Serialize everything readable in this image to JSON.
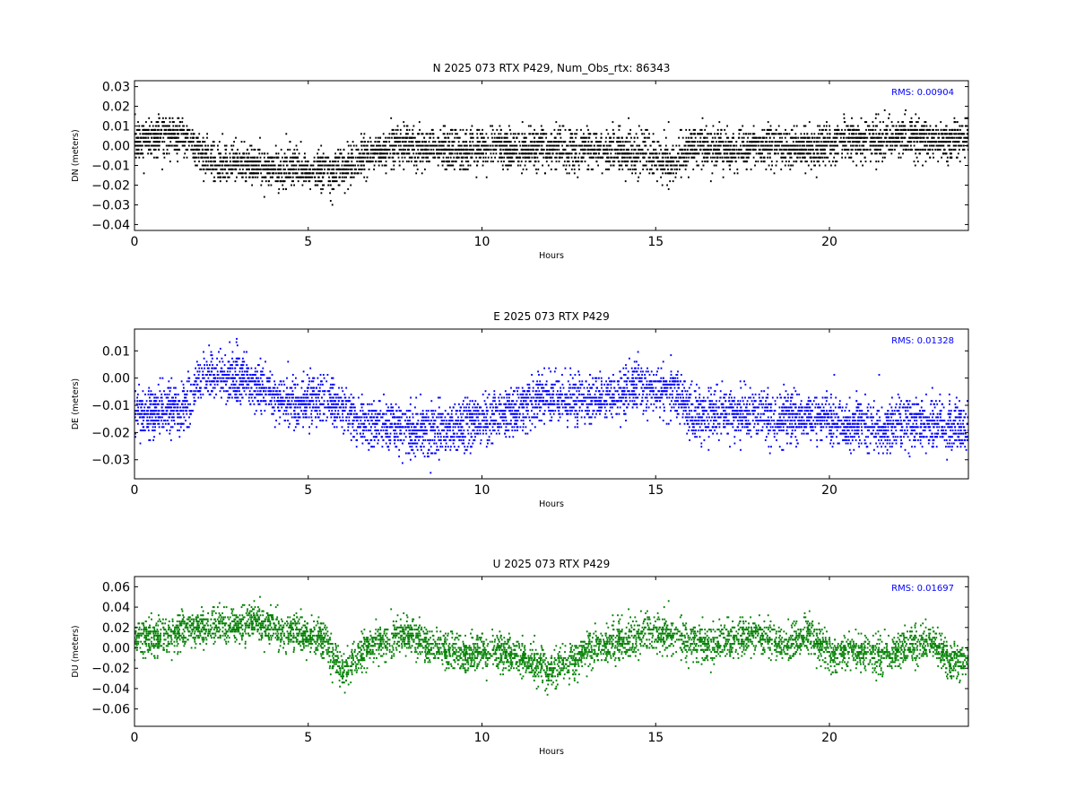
{
  "chart_data": [
    {
      "type": "scatter",
      "title": "N 2025 073 RTX  P429, Num_Obs_rtx: 86343",
      "xlabel": "Hours",
      "ylabel": "DN (meters)",
      "xlim": [
        0,
        24
      ],
      "ylim": [
        -0.043,
        0.033
      ],
      "xticks": [
        0,
        5,
        10,
        15,
        20
      ],
      "yticks": [
        -0.04,
        -0.03,
        -0.02,
        -0.01,
        0.0,
        0.01,
        0.02,
        0.03
      ],
      "ytick_labels": [
        "−0.04",
        "−0.03",
        "−0.02",
        "−0.01",
        "0.00",
        "0.01",
        "0.02",
        "0.03"
      ],
      "color": "#000000",
      "rms_label": "RMS:  0.00904",
      "quantization_step": 0.002,
      "series": [
        {
          "x": [
            0,
            0.5,
            1,
            1.5,
            2,
            2.5,
            3,
            3.5,
            4,
            4.5,
            5,
            5.5,
            6,
            6.5,
            7,
            7.5,
            8,
            8.5,
            9,
            9.5,
            10,
            10.5,
            11,
            11.5,
            12,
            12.5,
            13,
            13.5,
            14,
            14.5,
            15,
            15.5,
            16,
            16.5,
            17,
            17.5,
            18,
            18.5,
            19,
            19.5,
            20,
            20.5,
            21,
            21.5,
            22,
            22.5,
            23,
            23.5,
            24
          ],
          "mean": [
            0.002,
            0.004,
            0.006,
            0.003,
            -0.005,
            -0.01,
            -0.008,
            -0.01,
            -0.012,
            -0.01,
            -0.012,
            -0.014,
            -0.012,
            -0.006,
            -0.004,
            -0.001,
            0.0,
            -0.002,
            -0.002,
            -0.003,
            -0.002,
            -0.001,
            -0.002,
            -0.001,
            -0.001,
            -0.002,
            -0.002,
            -0.003,
            -0.003,
            -0.004,
            -0.006,
            -0.008,
            0.0,
            -0.001,
            -0.002,
            -0.002,
            -0.001,
            0.0,
            -0.001,
            -0.002,
            0.001,
            0.003,
            0.003,
            0.004,
            0.004,
            0.004,
            0.003,
            0.002,
            0.004
          ],
          "spread": 0.009
        }
      ]
    },
    {
      "type": "scatter",
      "title": "E 2025 073 RTX  P429",
      "xlabel": "Hours",
      "ylabel": "DE (meters)",
      "xlim": [
        0,
        24
      ],
      "ylim": [
        -0.037,
        0.018
      ],
      "xticks": [
        0,
        5,
        10,
        15,
        20
      ],
      "yticks": [
        -0.03,
        -0.02,
        -0.01,
        0.0,
        0.01
      ],
      "ytick_labels": [
        "−0.03",
        "−0.02",
        "−0.01",
        "0.00",
        "0.01"
      ],
      "color": "#0000ff",
      "rms_label": "RMS:  0.01328",
      "quantization_step": 0.0012,
      "series": [
        {
          "x": [
            0,
            0.5,
            1,
            1.5,
            2,
            2.5,
            3,
            3.5,
            4,
            4.5,
            5,
            5.5,
            6,
            6.5,
            7,
            7.5,
            8,
            8.5,
            9,
            9.5,
            10,
            10.5,
            11,
            11.5,
            12,
            12.5,
            13,
            13.5,
            14,
            14.5,
            15,
            15.5,
            16,
            16.5,
            17,
            17.5,
            18,
            18.5,
            19,
            19.5,
            20,
            20.5,
            21,
            21.5,
            22,
            22.5,
            23,
            23.5,
            24
          ],
          "mean": [
            -0.012,
            -0.014,
            -0.012,
            -0.01,
            0.001,
            0.0,
            0.0,
            -0.002,
            -0.007,
            -0.01,
            -0.008,
            -0.007,
            -0.012,
            -0.016,
            -0.018,
            -0.016,
            -0.02,
            -0.02,
            -0.018,
            -0.018,
            -0.015,
            -0.014,
            -0.012,
            -0.008,
            -0.007,
            -0.008,
            -0.008,
            -0.007,
            -0.006,
            -0.003,
            -0.004,
            -0.004,
            -0.012,
            -0.014,
            -0.012,
            -0.013,
            -0.012,
            -0.015,
            -0.015,
            -0.014,
            -0.015,
            -0.017,
            -0.017,
            -0.018,
            -0.017,
            -0.016,
            -0.018,
            -0.018,
            -0.017
          ],
          "spread": 0.008
        }
      ]
    },
    {
      "type": "scatter",
      "title": "U 2025 073 RTX  P429",
      "xlabel": "Hours",
      "ylabel": "DU (meters)",
      "xlim": [
        0,
        24
      ],
      "ylim": [
        -0.077,
        0.07
      ],
      "xticks": [
        0,
        5,
        10,
        15,
        20
      ],
      "yticks": [
        -0.06,
        -0.04,
        -0.02,
        0.0,
        0.02,
        0.04,
        0.06
      ],
      "ytick_labels": [
        "−0.06",
        "−0.04",
        "−0.02",
        "0.00",
        "0.02",
        "0.04",
        "0.06"
      ],
      "color": "#008000",
      "rms_label": "RMS:  0.01697",
      "quantization_step": 0.002,
      "series": [
        {
          "x": [
            0,
            0.5,
            1,
            1.5,
            2,
            2.5,
            3,
            3.5,
            4,
            4.5,
            5,
            5.5,
            6,
            6.5,
            7,
            7.5,
            8,
            8.5,
            9,
            9.5,
            10,
            10.5,
            11,
            11.5,
            12,
            12.5,
            13,
            13.5,
            14,
            14.5,
            15,
            15.5,
            16,
            16.5,
            17,
            17.5,
            18,
            18.5,
            19,
            19.5,
            20,
            20.5,
            21,
            21.5,
            22,
            22.5,
            23,
            23.5,
            24
          ],
          "mean": [
            0.01,
            0.01,
            0.014,
            0.018,
            0.02,
            0.024,
            0.022,
            0.026,
            0.02,
            0.016,
            0.012,
            0.008,
            -0.025,
            -0.005,
            0.005,
            0.01,
            0.012,
            0.0,
            -0.004,
            -0.006,
            -0.006,
            -0.004,
            -0.008,
            -0.015,
            -0.022,
            -0.014,
            -0.005,
            0.002,
            0.005,
            0.01,
            0.016,
            0.012,
            0.006,
            0.004,
            0.006,
            0.01,
            0.012,
            0.004,
            0.006,
            0.012,
            -0.006,
            -0.006,
            -0.004,
            -0.006,
            -0.002,
            0.002,
            0.006,
            -0.015,
            -0.01
          ],
          "spread": 0.016
        }
      ]
    }
  ]
}
